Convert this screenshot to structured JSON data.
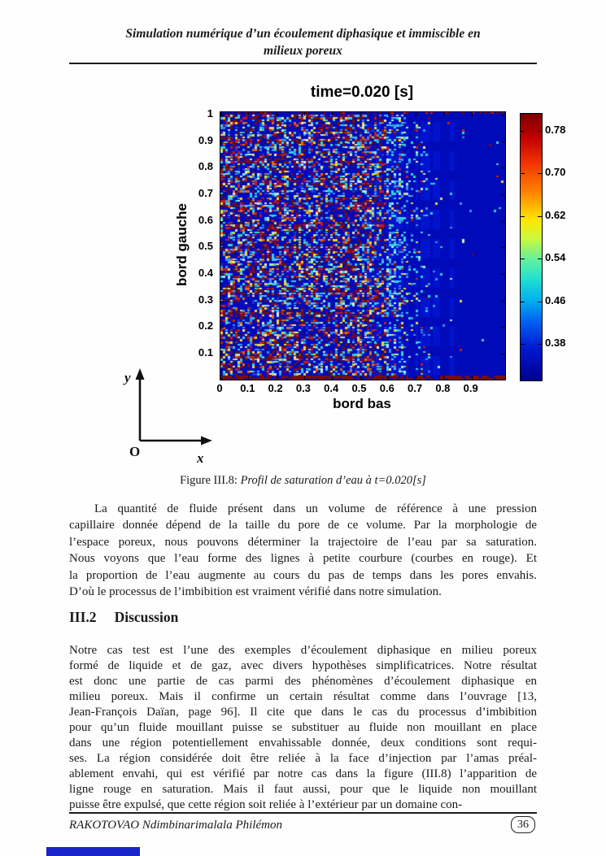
{
  "header": {
    "line1": "Simulation numérique d’un écoulement diphasique et immiscible en",
    "line2": "milieux poreux"
  },
  "chart_data": {
    "type": "heatmap",
    "title": "time=0.020 [s]",
    "xlabel": "bord bas",
    "ylabel": "bord gauche",
    "x_ticks": [
      "0",
      "0.1",
      "0.2",
      "0.3",
      "0.4",
      "0.5",
      "0.6",
      "0.7",
      "0.8",
      "0.9"
    ],
    "y_ticks": [
      "1",
      "0.9",
      "0.8",
      "0.7",
      "0.6",
      "0.5",
      "0.4",
      "0.3",
      "0.2",
      "0.1"
    ],
    "xlim": [
      0,
      1
    ],
    "ylim": [
      0,
      1
    ],
    "colormap": "jet",
    "colorbar_tick_labels": [
      "0.78",
      "0.70",
      "0.62",
      "0.54",
      "0.46",
      "0.38"
    ],
    "value_range_estimate": [
      0.31,
      0.81
    ],
    "field_description": "Water-saturation field: dense multicolour speckle (dark red = high saturation ~0.8, cyan/yellow intermediate) over dark blue background (~0.33) covering left ~60% of domain, fading to uniform dark blue toward the right boundary; dark red saturation line along the bottom edge and speckled top edge; horizontal red streak bands.",
    "generation": {
      "seed": 7,
      "cols": 117,
      "rows": 110,
      "dense_until_x": 0.5,
      "fade_until_x": 0.76
    },
    "palette": {
      "background": "#000ab8",
      "background_light": "#0013cf",
      "dark_red": "#7a0c0c",
      "red": "#c41e1e",
      "orange": "#e06a1a",
      "yellow": "#e8d93e",
      "pale": "#efe9b4",
      "cyan": "#39cfe0",
      "light_cyan": "#a9edf3",
      "sky": "#3f8fe8",
      "mid_blue": "#2433d6"
    }
  },
  "sketch": {
    "y_axis_label": "y",
    "x_axis_label": "x",
    "origin_label": "O"
  },
  "figure": {
    "caption_prefix": "Figure III.8:",
    "caption_text": "Profil de saturation d’eau à t=0.020[s]"
  },
  "content": {
    "para1_lines": [
      "La quantité de fluide présent dans un volume de référence à une pression",
      "capillaire donnée dépend de la taille du pore de ce volume. Par la morphologie de",
      "l’espace poreux, nous pouvons déterminer la trajectoire de l’eau par sa saturation.",
      "Nous voyons que l’eau forme des lignes à petite courbure (courbes en rouge). Et",
      "la proportion de l’eau augmente au cours du pas de temps dans les pores envahis.",
      "D’où le processus de l’imbibition est vraiment vérifié dans notre simulation."
    ],
    "section_number": "III.2",
    "section_title": "Discussion",
    "para2_lines": [
      "Notre cas test est l’une des exemples d’écoulement diphasique en milieu poreux",
      "formé de liquide et de gaz, avec divers hypothèses simplificatrices. Notre résultat",
      "est donc une partie de cas parmi des phénomènes d’écoulement diphasique en",
      "milieu poreux. Mais il confirme un certain résultat comme dans l’ouvrage [13,",
      "Jean-François Daïan, page 96]. Il cite que dans le cas du processus d’imbibition",
      "pour qu’un fluide mouillant puisse se substituer au fluide non mouillant en place",
      "dans une région potentiellement envahissable donnée, deux conditions sont requi-",
      "ses. La région considérée doit être reliée à la face d’injection par l’amas préal-",
      "ablement envahi, qui est vérifié par notre cas dans la figure (III.8) l’apparition de",
      "ligne rouge en saturation. Mais il faut aussi, pour que le liquide non mouillant",
      "puisse être expulsé, que cette région soit reliée à l’extérieur par un domaine con-"
    ]
  },
  "footer": {
    "author": "RAKOTOVAO Ndimbinarimalala Philémon",
    "page_number": "36"
  }
}
